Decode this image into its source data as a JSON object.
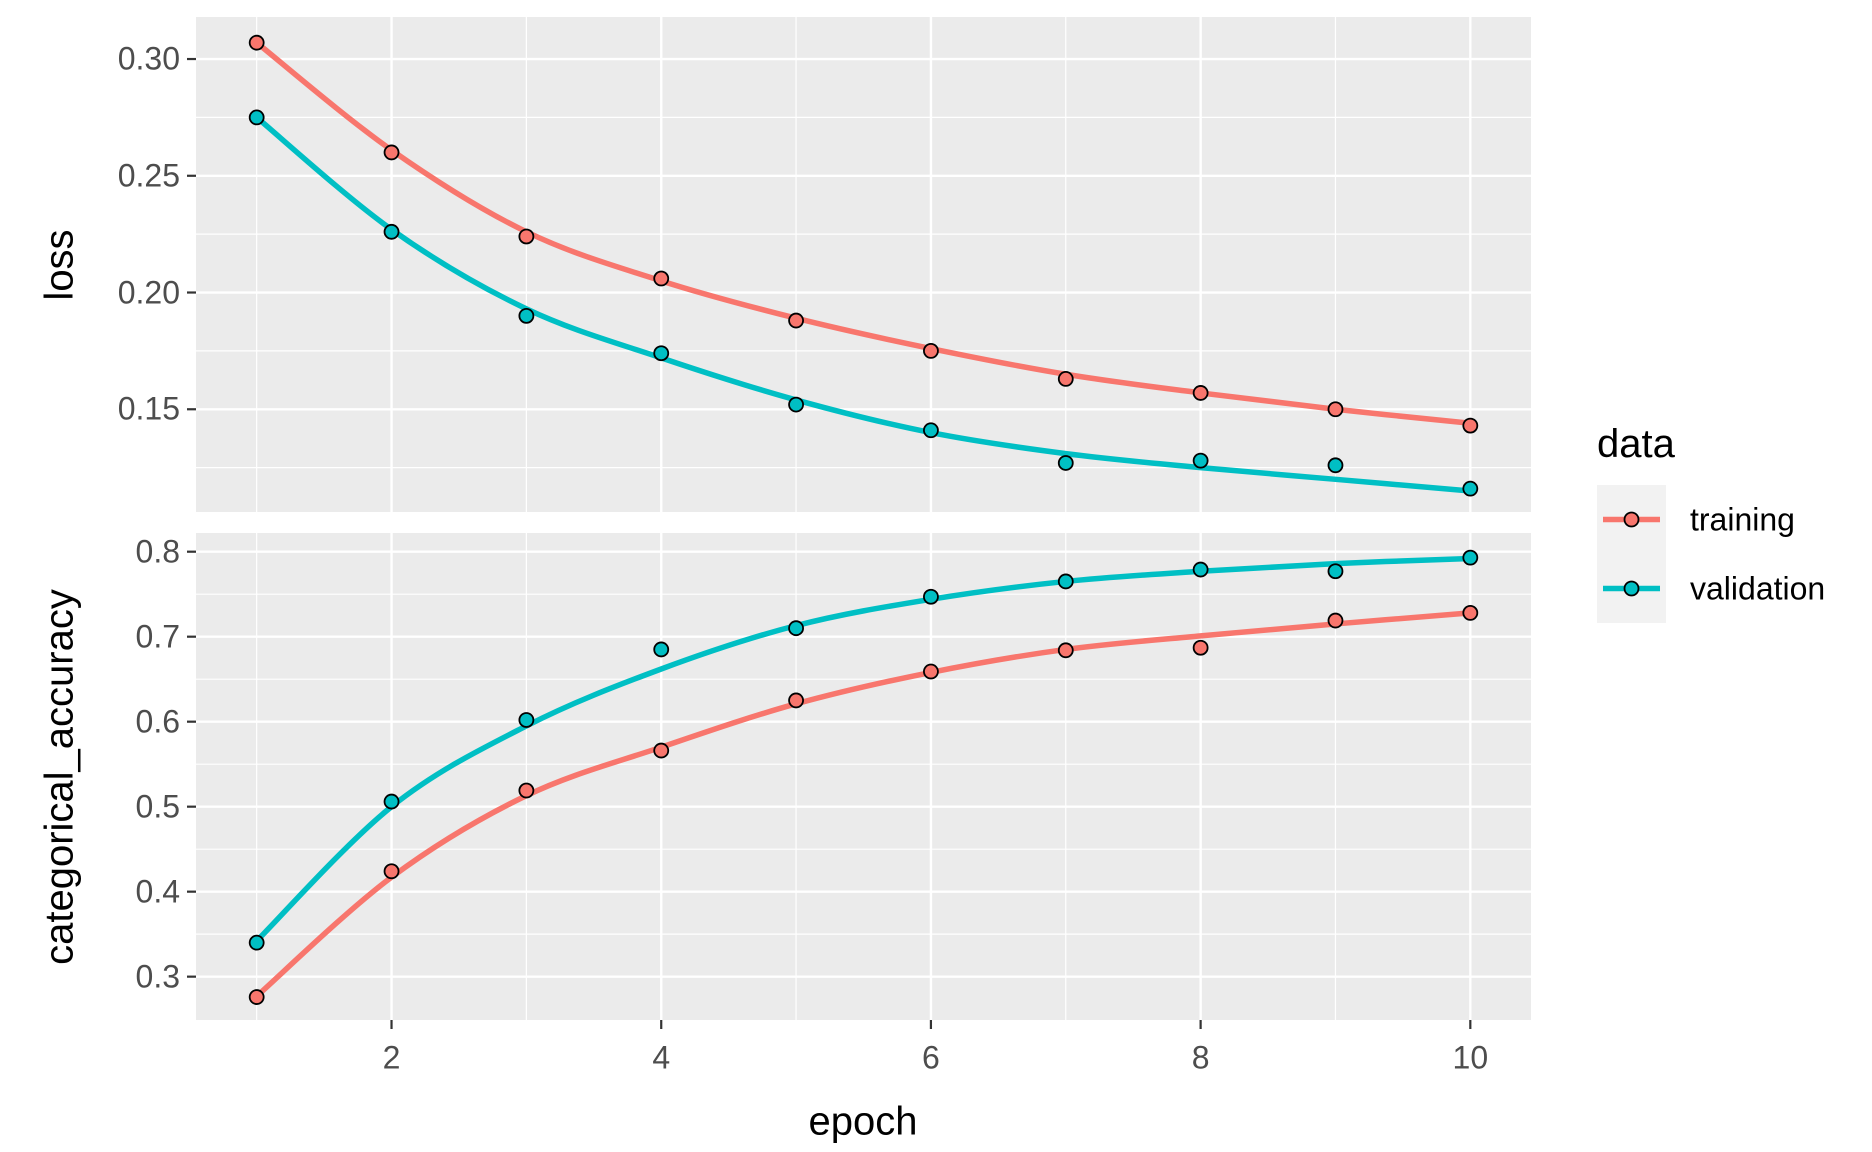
{
  "chart_data": {
    "type": "line",
    "title": "",
    "xlabel": "epoch",
    "x": [
      1,
      2,
      3,
      4,
      5,
      6,
      7,
      8,
      9,
      10
    ],
    "xticks": [
      2,
      4,
      6,
      8,
      10
    ],
    "xticks_minor": [
      1,
      3,
      5,
      7,
      9
    ],
    "xlim": [
      0.55,
      10.45
    ],
    "grid": true,
    "legend_position": "right",
    "legend": {
      "title": "data",
      "entries": [
        {
          "label": "training",
          "color": "#F8766D"
        },
        {
          "label": "validation",
          "color": "#00BFC4"
        }
      ]
    },
    "panels": [
      {
        "ylabel": "loss",
        "ylim": [
          0.106,
          0.318
        ],
        "yticks": [
          {
            "v": 0.3,
            "label": "0.30"
          },
          {
            "v": 0.25,
            "label": "0.25"
          },
          {
            "v": 0.2,
            "label": "0.20"
          },
          {
            "v": 0.15,
            "label": "0.15"
          }
        ],
        "yticks_minor": [
          0.275,
          0.225,
          0.175,
          0.125
        ],
        "series": [
          {
            "name": "training",
            "color": "#F8766D",
            "points": [
              0.307,
              0.26,
              0.224,
              0.206,
              0.188,
              0.175,
              0.163,
              0.157,
              0.15,
              0.143
            ],
            "smooth": [
              0.307,
              0.261,
              0.226,
              0.205,
              0.189,
              0.176,
              0.165,
              0.157,
              0.15,
              0.144
            ]
          },
          {
            "name": "validation",
            "color": "#00BFC4",
            "points": [
              0.275,
              0.226,
              0.19,
              0.174,
              0.152,
              0.141,
              0.127,
              0.128,
              0.126,
              0.116
            ],
            "smooth": [
              0.275,
              0.227,
              0.193,
              0.172,
              0.154,
              0.14,
              0.131,
              0.125,
              0.12,
              0.115
            ]
          }
        ]
      },
      {
        "ylabel": "categorical_accuracy",
        "ylim": [
          0.249,
          0.822
        ],
        "yticks": [
          {
            "v": 0.8,
            "label": "0.8"
          },
          {
            "v": 0.7,
            "label": "0.7"
          },
          {
            "v": 0.6,
            "label": "0.6"
          },
          {
            "v": 0.5,
            "label": "0.5"
          },
          {
            "v": 0.4,
            "label": "0.4"
          },
          {
            "v": 0.3,
            "label": "0.3"
          }
        ],
        "yticks_minor": [
          0.75,
          0.65,
          0.55,
          0.45,
          0.35
        ],
        "series": [
          {
            "name": "training",
            "color": "#F8766D",
            "points": [
              0.276,
              0.424,
              0.519,
              0.566,
              0.625,
              0.659,
              0.684,
              0.687,
              0.719,
              0.728
            ],
            "smooth": [
              0.277,
              0.417,
              0.513,
              0.57,
              0.621,
              0.658,
              0.685,
              0.701,
              0.715,
              0.728
            ]
          },
          {
            "name": "validation",
            "color": "#00BFC4",
            "points": [
              0.34,
              0.506,
              0.602,
              0.685,
              0.71,
              0.747,
              0.765,
              0.779,
              0.777,
              0.793
            ],
            "smooth": [
              0.342,
              0.5,
              0.595,
              0.662,
              0.713,
              0.744,
              0.765,
              0.777,
              0.786,
              0.792
            ]
          }
        ]
      }
    ],
    "style": {
      "panel_bg": "#EBEBEB",
      "grid_color": "#FFFFFF",
      "tick_color": "#333333",
      "tick_label_color": "#4D4D4D",
      "point_outline": "#000000"
    }
  }
}
